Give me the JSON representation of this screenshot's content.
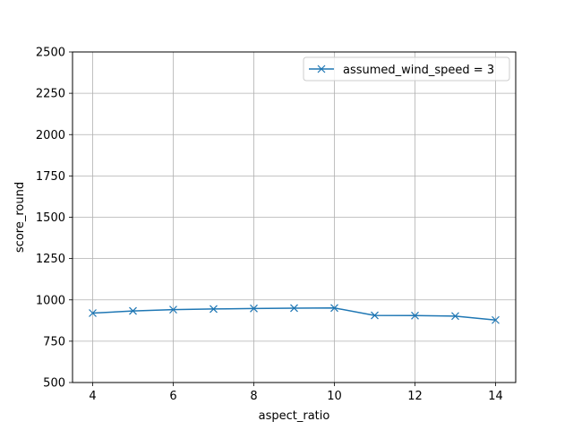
{
  "chart_data": {
    "type": "line",
    "title": "",
    "xlabel": "aspect_ratio",
    "ylabel": "score_round",
    "xlim": [
      3.5,
      14.5
    ],
    "ylim": [
      500,
      2500
    ],
    "xticks": [
      4,
      6,
      8,
      10,
      12,
      14
    ],
    "yticks": [
      500,
      750,
      1000,
      1250,
      1500,
      1750,
      2000,
      2250,
      2500
    ],
    "grid": true,
    "legend_position": "top-right",
    "series": [
      {
        "name": "assumed_wind_speed = 3",
        "color": "#1f77b4",
        "marker": "x",
        "x": [
          4,
          5,
          6,
          7,
          8,
          9,
          10,
          11,
          12,
          13,
          14
        ],
        "y": [
          920,
          933,
          941,
          945,
          948,
          950,
          951,
          906,
          905,
          902,
          878
        ]
      }
    ]
  }
}
